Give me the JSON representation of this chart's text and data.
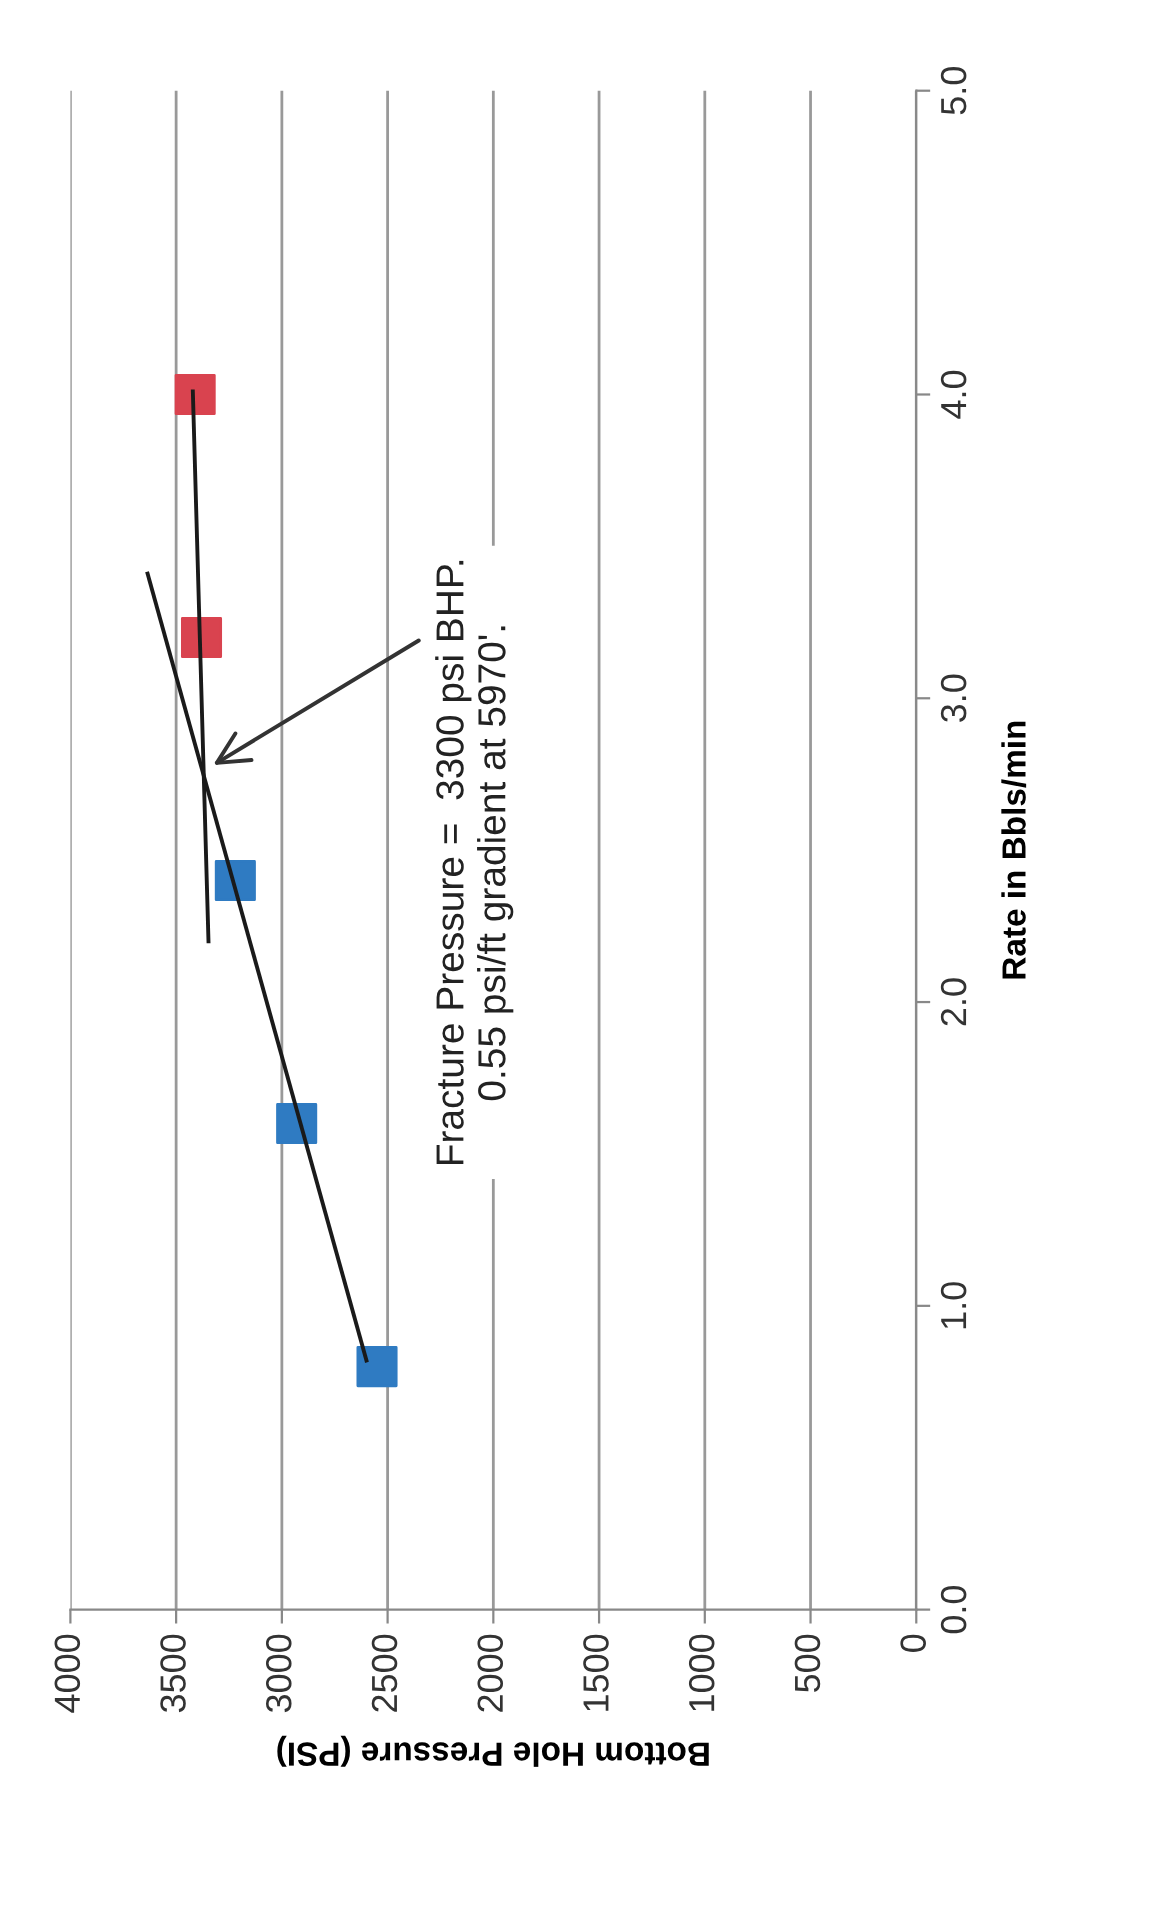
{
  "chart_data": {
    "type": "scatter",
    "xlabel": "Bottom Hole Pressure (PSI)",
    "ylabel": "Rate in Bbls/min",
    "ylim": [
      0,
      5
    ],
    "yticks": [
      {
        "value": 0,
        "label": "0.0"
      },
      {
        "value": 1,
        "label": "1.0"
      },
      {
        "value": 2,
        "label": "2.0"
      },
      {
        "value": 3,
        "label": "3.0"
      },
      {
        "value": 4,
        "label": "4.0"
      },
      {
        "value": 5,
        "label": "5.0"
      }
    ],
    "xlim": [
      4000,
      0
    ],
    "xticks": [
      4000,
      3500,
      3000,
      2500,
      2000,
      1500,
      1000,
      500,
      0
    ],
    "grid": "x",
    "marker": "square",
    "series": [
      {
        "color": "#2f7bc2",
        "x": [
          2550,
          2930,
          3220
        ],
        "values": [
          0.8,
          1.6,
          2.4
        ]
      },
      {
        "color": "#d9434f",
        "x": [
          3380,
          3410
        ],
        "values": [
          3.2,
          4.0
        ]
      },
      {
        "type": "line",
        "color": "#1a1a1a",
        "marker": "none",
        "x": [
          2600,
          3635
        ],
        "values": [
          0.82,
          3.41
        ]
      },
      {
        "type": "line",
        "color": "#1a1a1a",
        "marker": "none",
        "x": [
          3347,
          3421
        ],
        "values": [
          2.2,
          4.01
        ]
      }
    ],
    "annotations": [
      {
        "text": "Fracture Pressure =  3300 psi BHP.\n0.55 psi/ft gradient at 5970'.",
        "x": 3325,
        "y": 2.78
      }
    ]
  }
}
